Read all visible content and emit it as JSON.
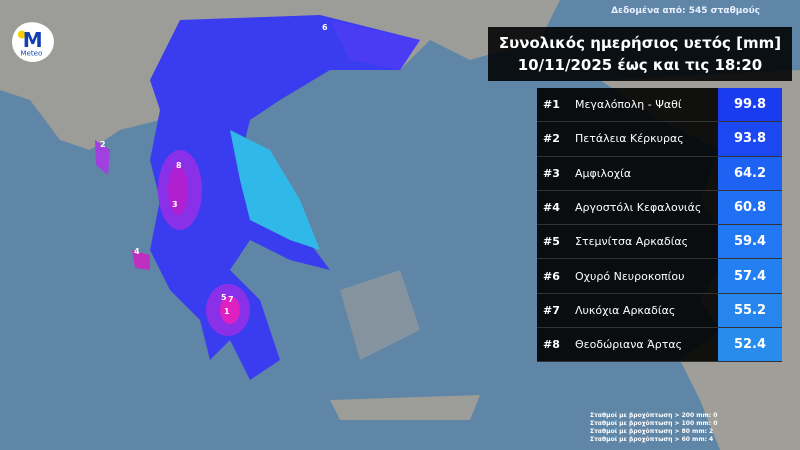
{
  "source_note": "Δεδομένα από: 545 σταθμούς",
  "title_line1": "Συνολικός ημερήσιος υετός [mm]",
  "title_line2": "10/11/2025 έως και τις 18:20",
  "logo": {
    "text": "Meteo",
    "icon": "meteo-logo"
  },
  "ranking": [
    {
      "rank": "#1",
      "station": "Μεγαλόπολη - Ψαθί",
      "value": "99.8",
      "color": "#1a3cf0"
    },
    {
      "rank": "#2",
      "station": "Πετάλεια Κέρκυρας",
      "value": "93.8",
      "color": "#1c48f2"
    },
    {
      "rank": "#3",
      "station": "Αμφιλοχία",
      "value": "64.2",
      "color": "#1e62f4"
    },
    {
      "rank": "#4",
      "station": "Αργοστόλι Κεφαλονιάς",
      "value": "60.8",
      "color": "#2070f4"
    },
    {
      "rank": "#5",
      "station": "Στεμνίτσα Αρκαδίας",
      "value": "59.4",
      "color": "#2278f2"
    },
    {
      "rank": "#6",
      "station": "Οχυρό Νευροκοπίου",
      "value": "57.4",
      "color": "#2480f0"
    },
    {
      "rank": "#7",
      "station": "Λυκόχια Αρκαδίας",
      "value": "55.2",
      "color": "#2686ee"
    },
    {
      "rank": "#8",
      "station": "Θεοδώριανα Άρτας",
      "value": "52.4",
      "color": "#288cec"
    }
  ],
  "map_markers": [
    "1",
    "2",
    "3",
    "4",
    "5",
    "6",
    "7",
    "8"
  ],
  "stats": [
    "Σταθμοί με βροχόπτωση > 200 mm: 0",
    "Σταθμοί με βροχόπτωση > 100 mm: 0",
    "Σταθμοί με βροχόπτωση > 80 mm: 2",
    "Σταθμοί με βροχόπτωση > 60 mm: 4"
  ]
}
